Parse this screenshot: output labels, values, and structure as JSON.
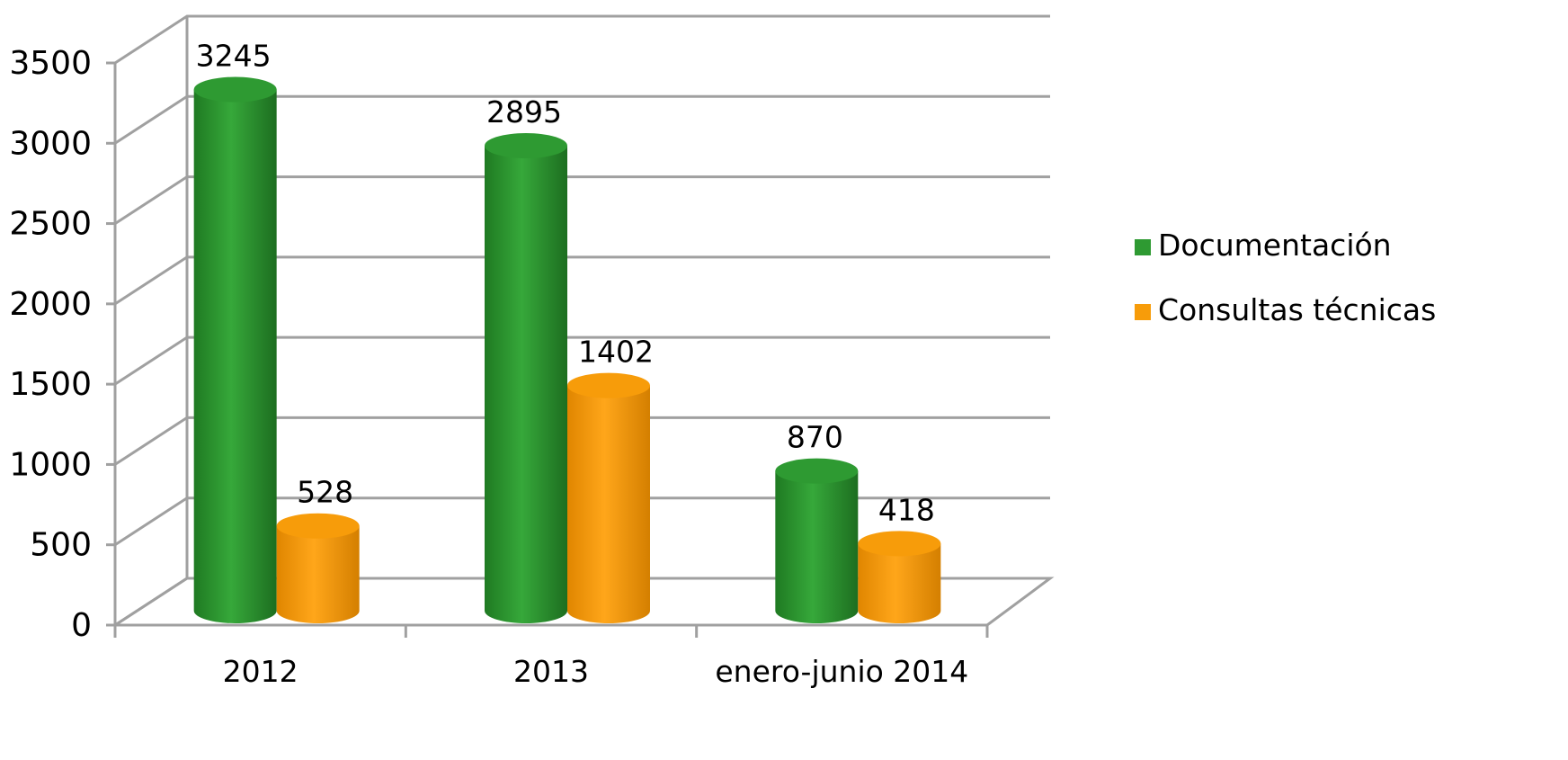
{
  "chart_data": {
    "type": "bar",
    "title": "",
    "xlabel": "",
    "ylabel": "",
    "categories": [
      "2012",
      "2013",
      "enero-junio 2014"
    ],
    "series": [
      {
        "name": "Documentación",
        "values": [
          3245,
          2895,
          870
        ],
        "color": "#2e9a32"
      },
      {
        "name": "Consultas técnicas",
        "values": [
          528,
          1402,
          418
        ],
        "color": "#f79c0a"
      }
    ],
    "ylim": [
      0,
      3500
    ],
    "yticks": [
      0,
      500,
      1000,
      1500,
      2000,
      2500,
      3000,
      3500
    ],
    "grid": true,
    "legend_position": "right",
    "style": "3d-cylinder"
  }
}
